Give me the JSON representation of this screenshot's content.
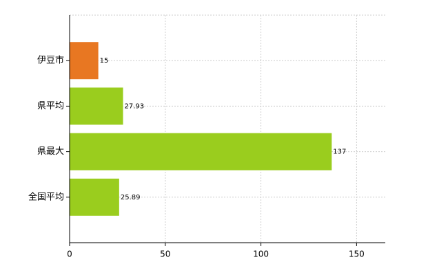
{
  "chart_data": {
    "type": "bar",
    "orientation": "horizontal",
    "categories": [
      "伊豆市",
      "県平均",
      "県最大",
      "全国平均"
    ],
    "values": [
      15,
      27.93,
      137,
      25.89
    ],
    "colors": [
      "#e87722",
      "#9acd1e",
      "#9acd1e",
      "#9acd1e"
    ],
    "xlim": [
      0,
      165
    ],
    "xticks": [
      0,
      50,
      100,
      150
    ],
    "grid": true
  }
}
